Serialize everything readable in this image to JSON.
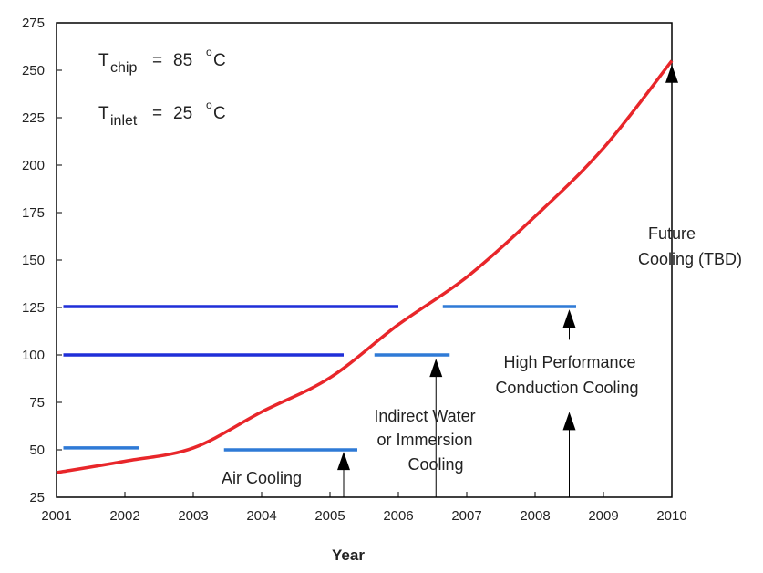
{
  "chart_data": {
    "type": "line",
    "title": "",
    "xlabel": "Year",
    "ylabel": "",
    "xlim": [
      2001,
      2010
    ],
    "ylim": [
      25,
      275
    ],
    "x_ticks": [
      "2001",
      "2002",
      "2003",
      "2004",
      "2005",
      "2006",
      "2007",
      "2008",
      "2009",
      "2010"
    ],
    "y_ticks": [
      "25",
      "50",
      "75",
      "100",
      "125",
      "150",
      "175",
      "200",
      "225",
      "250",
      "275"
    ],
    "grid": false,
    "series": [
      {
        "color": "#e8262a",
        "x": [
          2001,
          2002,
          2003,
          2004,
          2005,
          2006,
          2007,
          2008,
          2009,
          2010
        ],
        "y": [
          38,
          44,
          51,
          70,
          88,
          116,
          141,
          173,
          209,
          255
        ]
      }
    ],
    "ranges": [
      {
        "x": [
          2001.1,
          2002.2
        ],
        "y": 51,
        "color": "#2f7ad6"
      },
      {
        "x": [
          2001.1,
          2005.2
        ],
        "y": 100,
        "color": "#1f2fd8"
      },
      {
        "x": [
          2001.1,
          2006.0
        ],
        "y": 125.5,
        "color": "#1f2fd8"
      },
      {
        "x": [
          2003.45,
          2005.4
        ],
        "y": 50,
        "color": "#2f7ad6"
      },
      {
        "x": [
          2005.65,
          2006.75
        ],
        "y": 100,
        "color": "#2f7ad6"
      },
      {
        "x": [
          2006.65,
          2008.6
        ],
        "y": 125.5,
        "color": "#2f7ad6"
      }
    ],
    "arrows": [
      {
        "x": 2005.2,
        "from_y": 25,
        "to_y": 49
      },
      {
        "x": 2006.55,
        "from_y": 25,
        "to_y": 98
      },
      {
        "x": 2008.5,
        "from_y": 108,
        "to_y": 124
      },
      {
        "x": 2008.5,
        "from_y": 25,
        "to_y": 70
      },
      {
        "x": 2010,
        "from_y": 25,
        "to_y": 253
      }
    ],
    "annotations": {
      "air_cooling": "Air Cooling",
      "indirect_line1": "Indirect Water",
      "indirect_line2": "or Immersion",
      "indirect_line3": "Cooling",
      "hpc_line1": "High Performance",
      "hpc_line2": "Conduction Cooling",
      "future_line1": "Future",
      "future_line2": "Cooling (TBD)"
    },
    "formulas": {
      "chip": {
        "symbol": "T",
        "subscript": "chip",
        "equals": "=",
        "value": "85",
        "degree": "o",
        "unit": "C"
      },
      "inlet": {
        "symbol": "T",
        "subscript": "inlet",
        "equals": "=",
        "value": "25",
        "degree": "o",
        "unit": "C"
      }
    }
  }
}
